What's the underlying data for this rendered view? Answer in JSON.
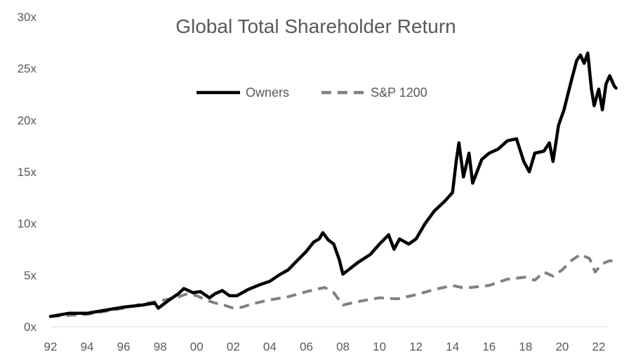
{
  "chart_data": {
    "type": "line",
    "title": "Global Total Shareholder Return",
    "xlabel": "",
    "ylabel": "",
    "xlim": [
      1992,
      2022.5
    ],
    "ylim": [
      0,
      30
    ],
    "y_ticks": [
      0,
      5,
      10,
      15,
      20,
      25,
      30
    ],
    "y_tick_labels": [
      "0x",
      "5x",
      "10x",
      "15x",
      "20x",
      "25x",
      "30x"
    ],
    "x_ticks": [
      1992,
      1994,
      1996,
      1998,
      2000,
      2002,
      2004,
      2006,
      2008,
      2010,
      2012,
      2014,
      2016,
      2018,
      2020,
      2022
    ],
    "x_tick_labels": [
      "92",
      "94",
      "96",
      "98",
      "00",
      "02",
      "04",
      "06",
      "08",
      "10",
      "12",
      "14",
      "16",
      "18",
      "20",
      "22"
    ],
    "grid": false,
    "legend_position": "top-center",
    "series": [
      {
        "name": "Owners",
        "color": "#000000",
        "style": "solid",
        "points": [
          [
            1992.0,
            1.0
          ],
          [
            1993.0,
            1.3
          ],
          [
            1994.0,
            1.3
          ],
          [
            1995.0,
            1.6
          ],
          [
            1996.0,
            1.9
          ],
          [
            1997.0,
            2.1
          ],
          [
            1997.7,
            2.3
          ],
          [
            1997.9,
            1.8
          ],
          [
            1998.5,
            2.6
          ],
          [
            1999.0,
            3.2
          ],
          [
            1999.3,
            3.7
          ],
          [
            1999.8,
            3.3
          ],
          [
            2000.2,
            3.4
          ],
          [
            2000.7,
            2.8
          ],
          [
            2001.0,
            3.2
          ],
          [
            2001.4,
            3.5
          ],
          [
            2001.8,
            3.0
          ],
          [
            2002.2,
            3.0
          ],
          [
            2002.8,
            3.6
          ],
          [
            2003.5,
            4.1
          ],
          [
            2004.0,
            4.4
          ],
          [
            2004.5,
            5.0
          ],
          [
            2005.0,
            5.5
          ],
          [
            2005.5,
            6.4
          ],
          [
            2006.0,
            7.3
          ],
          [
            2006.4,
            8.2
          ],
          [
            2006.7,
            8.5
          ],
          [
            2006.9,
            9.1
          ],
          [
            2007.2,
            8.4
          ],
          [
            2007.5,
            8.0
          ],
          [
            2007.8,
            6.5
          ],
          [
            2008.0,
            5.1
          ],
          [
            2008.3,
            5.5
          ],
          [
            2008.8,
            6.2
          ],
          [
            2009.5,
            7.0
          ],
          [
            2010.0,
            8.0
          ],
          [
            2010.5,
            8.9
          ],
          [
            2010.8,
            7.5
          ],
          [
            2011.1,
            8.5
          ],
          [
            2011.6,
            8.0
          ],
          [
            2012.0,
            8.5
          ],
          [
            2012.5,
            10.0
          ],
          [
            2013.0,
            11.2
          ],
          [
            2013.6,
            12.2
          ],
          [
            2014.0,
            13.0
          ],
          [
            2014.2,
            16.0
          ],
          [
            2014.35,
            17.8
          ],
          [
            2014.6,
            14.5
          ],
          [
            2014.9,
            16.8
          ],
          [
            2015.1,
            13.9
          ],
          [
            2015.6,
            16.2
          ],
          [
            2016.0,
            16.8
          ],
          [
            2016.5,
            17.2
          ],
          [
            2017.0,
            18.0
          ],
          [
            2017.5,
            18.2
          ],
          [
            2017.9,
            16.0
          ],
          [
            2018.2,
            15.0
          ],
          [
            2018.5,
            16.8
          ],
          [
            2019.0,
            17.0
          ],
          [
            2019.3,
            17.8
          ],
          [
            2019.5,
            16.0
          ],
          [
            2019.8,
            19.5
          ],
          [
            2020.1,
            21.0
          ],
          [
            2020.5,
            23.8
          ],
          [
            2020.8,
            25.8
          ],
          [
            2021.0,
            26.3
          ],
          [
            2021.2,
            25.5
          ],
          [
            2021.4,
            26.5
          ],
          [
            2021.6,
            23.0
          ],
          [
            2021.75,
            21.4
          ],
          [
            2022.0,
            23.0
          ],
          [
            2022.2,
            21.0
          ],
          [
            2022.4,
            23.5
          ],
          [
            2022.6,
            24.3
          ],
          [
            2022.85,
            23.3
          ],
          [
            2022.95,
            23.1
          ]
        ]
      },
      {
        "name": "S&P 1200",
        "color": "#808080",
        "style": "dashed",
        "points": [
          [
            1992.0,
            1.0
          ],
          [
            1993.0,
            1.1
          ],
          [
            1994.0,
            1.2
          ],
          [
            1995.0,
            1.5
          ],
          [
            1996.0,
            1.8
          ],
          [
            1997.0,
            2.2
          ],
          [
            1998.0,
            2.5
          ],
          [
            1999.0,
            2.9
          ],
          [
            1999.5,
            3.2
          ],
          [
            2000.0,
            3.0
          ],
          [
            2000.5,
            2.6
          ],
          [
            2001.0,
            2.3
          ],
          [
            2001.5,
            2.1
          ],
          [
            2002.0,
            1.8
          ],
          [
            2002.5,
            1.9
          ],
          [
            2003.0,
            2.2
          ],
          [
            2004.0,
            2.6
          ],
          [
            2005.0,
            2.9
          ],
          [
            2006.0,
            3.4
          ],
          [
            2007.0,
            3.8
          ],
          [
            2007.5,
            3.3
          ],
          [
            2008.0,
            2.1
          ],
          [
            2008.5,
            2.3
          ],
          [
            2009.0,
            2.5
          ],
          [
            2010.0,
            2.8
          ],
          [
            2011.0,
            2.7
          ],
          [
            2012.0,
            3.1
          ],
          [
            2013.0,
            3.6
          ],
          [
            2014.0,
            4.0
          ],
          [
            2014.5,
            3.8
          ],
          [
            2015.0,
            3.8
          ],
          [
            2016.0,
            4.0
          ],
          [
            2017.0,
            4.6
          ],
          [
            2018.0,
            4.8
          ],
          [
            2018.5,
            4.5
          ],
          [
            2019.0,
            5.3
          ],
          [
            2019.5,
            4.9
          ],
          [
            2020.0,
            5.5
          ],
          [
            2020.5,
            6.4
          ],
          [
            2021.0,
            7.0
          ],
          [
            2021.5,
            6.6
          ],
          [
            2021.8,
            5.3
          ],
          [
            2022.2,
            6.1
          ],
          [
            2022.6,
            6.4
          ],
          [
            2022.95,
            6.3
          ]
        ]
      }
    ]
  }
}
